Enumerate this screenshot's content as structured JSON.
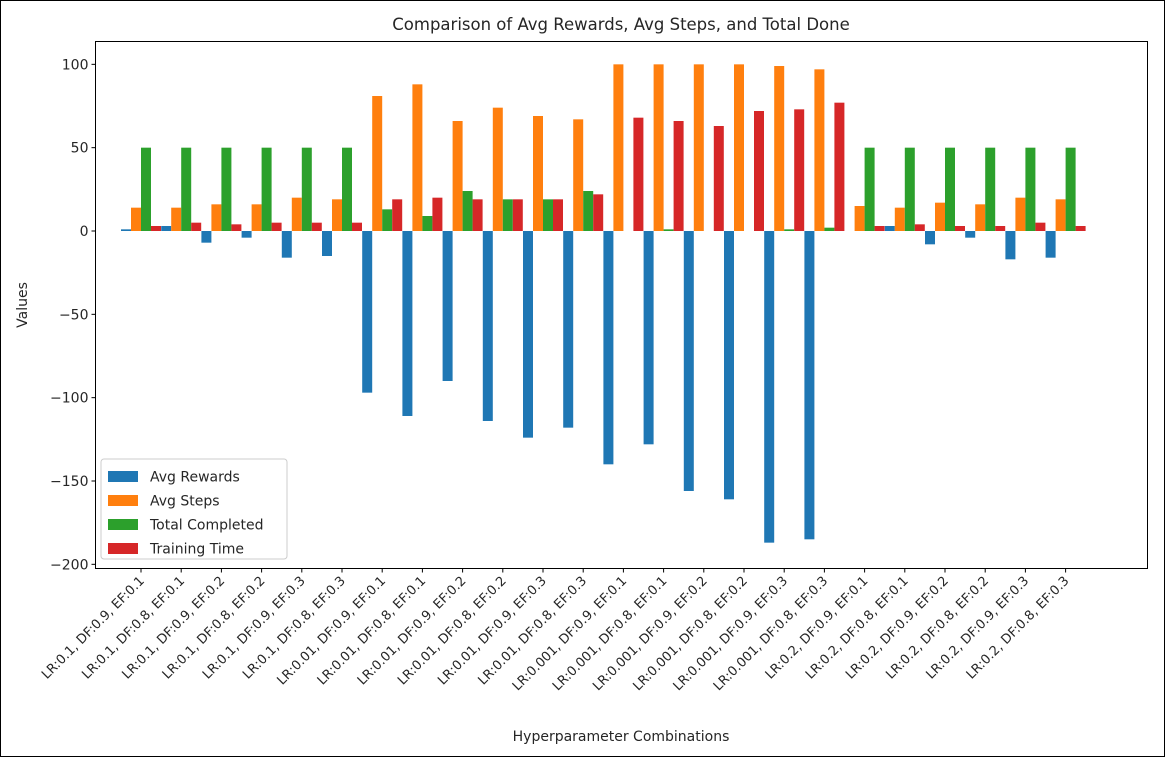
{
  "chart_data": {
    "type": "bar",
    "title": "Comparison of Avg Rewards, Avg Steps, and Total Done",
    "xlabel": "Hyperparameter Combinations",
    "ylabel": "Values",
    "ylim": [
      -203,
      115
    ],
    "yticks": [
      -200,
      -150,
      -100,
      -50,
      0,
      50,
      100
    ],
    "ytick_labels": [
      "−200",
      "−150",
      "−100",
      "−50",
      "0",
      "50",
      "100"
    ],
    "legend_position": "lower-left",
    "grid": false,
    "categories": [
      "LR:0.1, DF:0.9, EF:0.1",
      "LR:0.1, DF:0.8, EF:0.1",
      "LR:0.1, DF:0.9, EF:0.2",
      "LR:0.1, DF:0.8, EF:0.2",
      "LR:0.1, DF:0.9, EF:0.3",
      "LR:0.1, DF:0.8, EF:0.3",
      "LR:0.01, DF:0.9, EF:0.1",
      "LR:0.01, DF:0.8, EF:0.1",
      "LR:0.01, DF:0.9, EF:0.2",
      "LR:0.01, DF:0.8, EF:0.2",
      "LR:0.01, DF:0.9, EF:0.3",
      "LR:0.01, DF:0.8, EF:0.3",
      "LR:0.001, DF:0.9, EF:0.1",
      "LR:0.001, DF:0.8, EF:0.1",
      "LR:0.001, DF:0.9, EF:0.2",
      "LR:0.001, DF:0.8, EF:0.2",
      "LR:0.001, DF:0.9, EF:0.3",
      "LR:0.001, DF:0.8, EF:0.3",
      "LR:0.2, DF:0.9, EF:0.1",
      "LR:0.2, DF:0.8, EF:0.1",
      "LR:0.2, DF:0.9, EF:0.2",
      "LR:0.2, DF:0.8, EF:0.2",
      "LR:0.2, DF:0.9, EF:0.3",
      "LR:0.2, DF:0.8, EF:0.3"
    ],
    "series": [
      {
        "name": "Avg Rewards",
        "color": "#1f77b4",
        "values": [
          1,
          3,
          -7,
          -4,
          -16,
          -15,
          -97,
          -111,
          -90,
          -114,
          -124,
          -118,
          -140,
          -128,
          -156,
          -161,
          -187,
          -185,
          0,
          3,
          -8,
          -4,
          -17,
          -16
        ]
      },
      {
        "name": "Avg Steps",
        "color": "#ff7f0e",
        "values": [
          14,
          14,
          16,
          16,
          20,
          19,
          81,
          88,
          66,
          74,
          69,
          67,
          100,
          100,
          100,
          100,
          99,
          97,
          15,
          14,
          17,
          16,
          20,
          19
        ]
      },
      {
        "name": "Total Completed",
        "color": "#2ca02c",
        "values": [
          50,
          50,
          50,
          50,
          50,
          50,
          13,
          9,
          24,
          19,
          19,
          24,
          0,
          1,
          0,
          0,
          1,
          2,
          50,
          50,
          50,
          50,
          50,
          50
        ]
      },
      {
        "name": "Training Time",
        "color": "#d62728",
        "values": [
          3,
          5,
          4,
          5,
          5,
          5,
          19,
          20,
          19,
          19,
          19,
          22,
          68,
          66,
          63,
          72,
          73,
          77,
          3,
          4,
          3,
          3,
          5,
          3
        ]
      }
    ]
  }
}
